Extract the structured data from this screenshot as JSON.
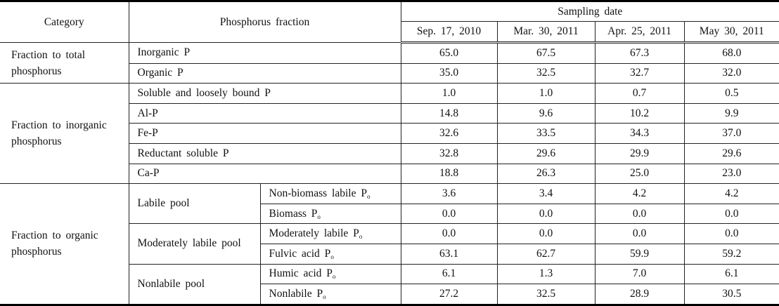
{
  "header": {
    "category": "Category",
    "phosphorus_fraction": "Phosphorus fraction",
    "sampling_date": "Sampling date",
    "dates": [
      "Sep. 17, 2010",
      "Mar. 30, 2011",
      "Apr. 25, 2011",
      "May 30, 2011"
    ]
  },
  "total": {
    "category": "Fraction to total phosphorus",
    "rows": [
      {
        "fraction": "Inorganic P",
        "values": [
          "65.0",
          "67.5",
          "67.3",
          "68.0"
        ]
      },
      {
        "fraction": "Organic P",
        "values": [
          "35.0",
          "32.5",
          "32.7",
          "32.0"
        ]
      }
    ]
  },
  "inorganic": {
    "category": "Fraction to inorganic phosphorus",
    "rows": [
      {
        "fraction": "Soluble and loosely bound P",
        "values": [
          "1.0",
          "1.0",
          "0.7",
          "0.5"
        ]
      },
      {
        "fraction": "Al-P",
        "values": [
          "14.8",
          "9.6",
          "10.2",
          "9.9"
        ]
      },
      {
        "fraction": "Fe-P",
        "values": [
          "32.6",
          "33.5",
          "34.3",
          "37.0"
        ]
      },
      {
        "fraction": "Reductant soluble P",
        "values": [
          "32.8",
          "29.6",
          "29.9",
          "29.6"
        ]
      },
      {
        "fraction": "Ca-P",
        "values": [
          "18.8",
          "26.3",
          "25.0",
          "23.0"
        ]
      }
    ]
  },
  "organic": {
    "category": "Fraction to organic phosphorus",
    "pools": [
      {
        "pool": "Labile pool",
        "rows": [
          {
            "fraction": "Non-biomass labile P",
            "sub": "o",
            "values": [
              "3.6",
              "3.4",
              "4.2",
              "4.2"
            ]
          },
          {
            "fraction": "Biomass P",
            "sub": "o",
            "values": [
              "0.0",
              "0.0",
              "0.0",
              "0.0"
            ]
          }
        ]
      },
      {
        "pool": "Moderately labile pool",
        "rows": [
          {
            "fraction": "Moderately labile P",
            "sub": "o",
            "values": [
              "0.0",
              "0.0",
              "0.0",
              "0.0"
            ]
          },
          {
            "fraction": "Fulvic acid P",
            "sub": "o",
            "values": [
              "63.1",
              "62.7",
              "59.9",
              "59.2"
            ]
          }
        ]
      },
      {
        "pool": "Nonlabile pool",
        "rows": [
          {
            "fraction": "Humic acid P",
            "sub": "o",
            "values": [
              "6.1",
              "1.3",
              "7.0",
              "6.1"
            ]
          },
          {
            "fraction": "Nonlabile P",
            "sub": "o",
            "values": [
              "27.2",
              "32.5",
              "28.9",
              "30.5"
            ]
          }
        ]
      }
    ]
  }
}
